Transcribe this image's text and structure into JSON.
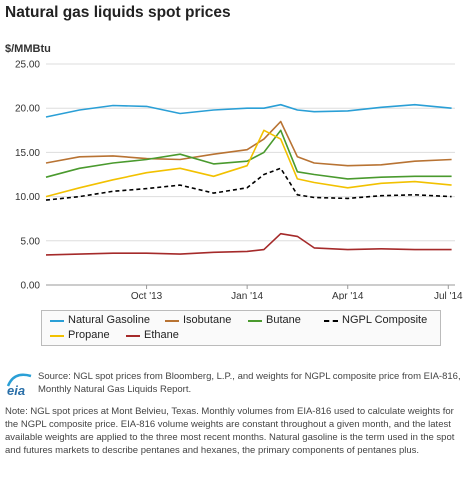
{
  "title": "Natural gas liquids spot prices",
  "unit_label": "$/MMBtu",
  "logo_text": "eia",
  "source_text": "Source: NGL spot prices from Bloomberg, L.P., and weights for NGPL composite price from EIA-816, Monthly Natural Gas Liquids Report.",
  "note_text": "Note: NGL spot prices at Mont Belvieu, Texas. Monthly volumes from EIA-816 used to calculate weights for the NGPL composite price. EIA-816 volume weights are constant throughout a given month, and the latest available weights are applied to the three most recent months. Natural gasoline is the term used in the spot and futures markets to describe pentanes and hexanes, the primary components of pentanes plus.",
  "chart_data": {
    "type": "line",
    "title": "Natural gas liquids spot prices",
    "ylabel": "$/MMBtu",
    "xlabel": "",
    "ylim": [
      0,
      25
    ],
    "yticks": [
      "0.00",
      "5.00",
      "10.00",
      "15.00",
      "20.00",
      "25.00"
    ],
    "xticks": [
      "Oct '13",
      "Jan '14",
      "Apr '14",
      "Jul '14"
    ],
    "xticks_month_index": [
      3,
      6,
      9,
      12
    ],
    "x": [
      "2013-07",
      "2013-08",
      "2013-09",
      "2013-10",
      "2013-11",
      "2013-12",
      "2014-01",
      "2014-01b",
      "2014-02",
      "2014-02b",
      "2014-03",
      "2014-04",
      "2014-05",
      "2014-06",
      "2014-07"
    ],
    "x_month_index": [
      0,
      1,
      2,
      3,
      4,
      5,
      6,
      6.5,
      7,
      7.5,
      8,
      9,
      10,
      11,
      12.1
    ],
    "grid": true,
    "legend_position": "bottom",
    "series": [
      {
        "name": "Natural Gasoline",
        "color": "#2a9fd6",
        "dashed": false,
        "values": [
          19.0,
          19.8,
          20.3,
          20.2,
          19.4,
          19.8,
          20.0,
          20.0,
          20.4,
          19.8,
          19.6,
          19.7,
          20.1,
          20.4,
          20.0
        ]
      },
      {
        "name": "Isobutane",
        "color": "#b87333",
        "dashed": false,
        "values": [
          13.8,
          14.5,
          14.6,
          14.3,
          14.2,
          14.8,
          15.3,
          16.5,
          18.5,
          14.5,
          13.8,
          13.5,
          13.6,
          14.0,
          14.2
        ]
      },
      {
        "name": "Butane",
        "color": "#4a9a2e",
        "dashed": false,
        "values": [
          12.2,
          13.2,
          13.8,
          14.2,
          14.8,
          13.7,
          14.0,
          15.0,
          17.5,
          12.8,
          12.5,
          12.0,
          12.2,
          12.3,
          12.3
        ]
      },
      {
        "name": "NGPL Composite",
        "color": "#000000",
        "dashed": true,
        "values": [
          9.6,
          10.0,
          10.6,
          10.9,
          11.3,
          10.4,
          11.0,
          12.5,
          13.2,
          10.2,
          9.9,
          9.8,
          10.1,
          10.2,
          10.0
        ]
      },
      {
        "name": "Propane",
        "color": "#f2c100",
        "dashed": false,
        "values": [
          10.0,
          11.0,
          11.9,
          12.7,
          13.2,
          12.3,
          13.5,
          17.5,
          16.5,
          12.0,
          11.6,
          11.0,
          11.5,
          11.7,
          11.3
        ]
      },
      {
        "name": "Ethane",
        "color": "#a52a2a",
        "dashed": false,
        "values": [
          3.4,
          3.5,
          3.6,
          3.6,
          3.5,
          3.7,
          3.8,
          4.0,
          5.8,
          5.5,
          4.2,
          4.0,
          4.1,
          4.0,
          4.0
        ]
      }
    ]
  }
}
